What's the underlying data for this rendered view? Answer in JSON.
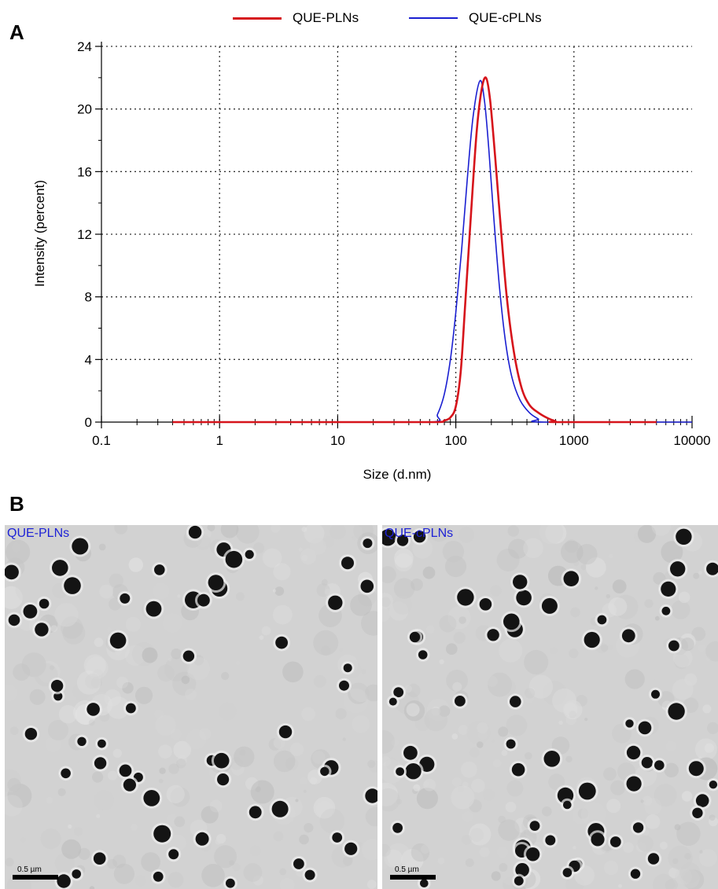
{
  "panels": {
    "a": "A",
    "b": "B"
  },
  "chart_data": {
    "type": "line",
    "x_scale": "log",
    "xlabel": "Size (d.nm)",
    "ylabel": "Intensity (percent)",
    "xlim": [
      0.1,
      10000
    ],
    "ylim": [
      0,
      24
    ],
    "x_ticks": [
      0.1,
      1,
      10,
      100,
      1000,
      10000
    ],
    "x_tick_labels": [
      "0.1",
      "1",
      "10",
      "100",
      "1000",
      "10000"
    ],
    "y_ticks": [
      0,
      4,
      8,
      12,
      16,
      20,
      24
    ],
    "y_tick_labels": [
      "0",
      "4",
      "8",
      "12",
      "16",
      "20",
      "24"
    ],
    "grid": true,
    "legend_position": "top",
    "series": [
      {
        "name": "QUE-PLNs",
        "color": "#d6141b",
        "points": [
          [
            0.4,
            0
          ],
          [
            20,
            0
          ],
          [
            68,
            0
          ],
          [
            80,
            0.1
          ],
          [
            90,
            0.3
          ],
          [
            100,
            1.0
          ],
          [
            110,
            3.2
          ],
          [
            120,
            7.5
          ],
          [
            135,
            13.5
          ],
          [
            150,
            18.5
          ],
          [
            165,
            21.2
          ],
          [
            180,
            22.0
          ],
          [
            195,
            20.6
          ],
          [
            215,
            17.0
          ],
          [
            240,
            12.5
          ],
          [
            270,
            8.0
          ],
          [
            310,
            4.5
          ],
          [
            360,
            2.2
          ],
          [
            420,
            1.1
          ],
          [
            500,
            0.6
          ],
          [
            600,
            0.25
          ],
          [
            700,
            0.05
          ],
          [
            720,
            0
          ],
          [
            5000,
            0
          ]
        ]
      },
      {
        "name": "QUE-cPLNs",
        "color": "#1a1fd1",
        "points": [
          [
            0.4,
            0
          ],
          [
            10,
            0
          ],
          [
            62,
            0
          ],
          [
            70,
            0.5
          ],
          [
            80,
            1.8
          ],
          [
            90,
            4.0
          ],
          [
            100,
            7.0
          ],
          [
            112,
            11.0
          ],
          [
            125,
            15.5
          ],
          [
            140,
            19.5
          ],
          [
            160,
            21.8
          ],
          [
            175,
            20.5
          ],
          [
            190,
            17.5
          ],
          [
            210,
            13.0
          ],
          [
            235,
            8.5
          ],
          [
            265,
            5.0
          ],
          [
            300,
            2.8
          ],
          [
            350,
            1.4
          ],
          [
            420,
            0.6
          ],
          [
            500,
            0.2
          ],
          [
            560,
            0
          ],
          [
            10000,
            0
          ]
        ]
      }
    ]
  },
  "tem": {
    "left": {
      "label": "QUE-PLNs",
      "scale": "0.5 µm"
    },
    "right": {
      "label": "QUE-cPLNs",
      "scale": "0.5 µm"
    }
  }
}
